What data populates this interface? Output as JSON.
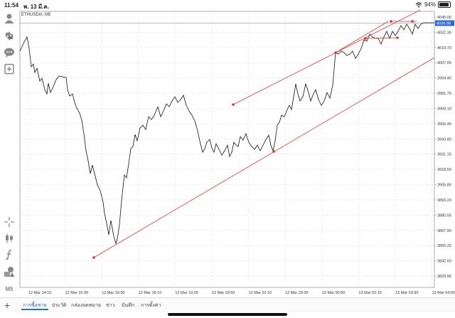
{
  "status_bar": {
    "time": "11:54",
    "date": "พ. 13 มี.ค.",
    "battery": "94%",
    "battery_level": 0.94
  },
  "chart": {
    "symbol": "ETHUSDm, M5",
    "price_labels": [
      "4045.00",
      "4032.35",
      "4019.70",
      "4007.05",
      "3994.40",
      "3981.75",
      "3969.10",
      "3956.45",
      "3943.80",
      "3931.15",
      "3918.50",
      "3905.85",
      "3893.20",
      "3880.55",
      "3867.90",
      "3855.25",
      "3842.60",
      "3829.95"
    ],
    "current_price": "4039.98",
    "time_labels": [
      "12 Mar 14:10",
      "12 Mar 15:30",
      "12 Mar 16:50",
      "12 Mar 18:10",
      "12 Mar 19:30",
      "12 Mar 20:50",
      "12 Mar 22:10",
      "12 Mar 23:30",
      "13 Mar 00:50",
      "13 Mar 02:10",
      "13 Mar 03:30",
      "13 Mar 04:50"
    ],
    "colors": {
      "price_line": "#111111",
      "trendline": "#e03030",
      "current_price_bg": "#2a6ad0",
      "grid": "#c8c8c8"
    }
  },
  "toolbar": {
    "icons": [
      "account-icon",
      "trade-arrows-icon",
      "chat-icon",
      "add-window-icon",
      "crosshair-icon",
      "candles-icon",
      "indicators-icon",
      "objects-icon",
      "timeframe-icon"
    ],
    "timeframe_label": "M5"
  },
  "bottom_tabs": {
    "plus": "+",
    "items": [
      "การซื้อขาย",
      "ประวัติ",
      "กล่องจดหมาย",
      "ข่าว",
      "บันทึก",
      "การตั้งค่า"
    ]
  }
}
